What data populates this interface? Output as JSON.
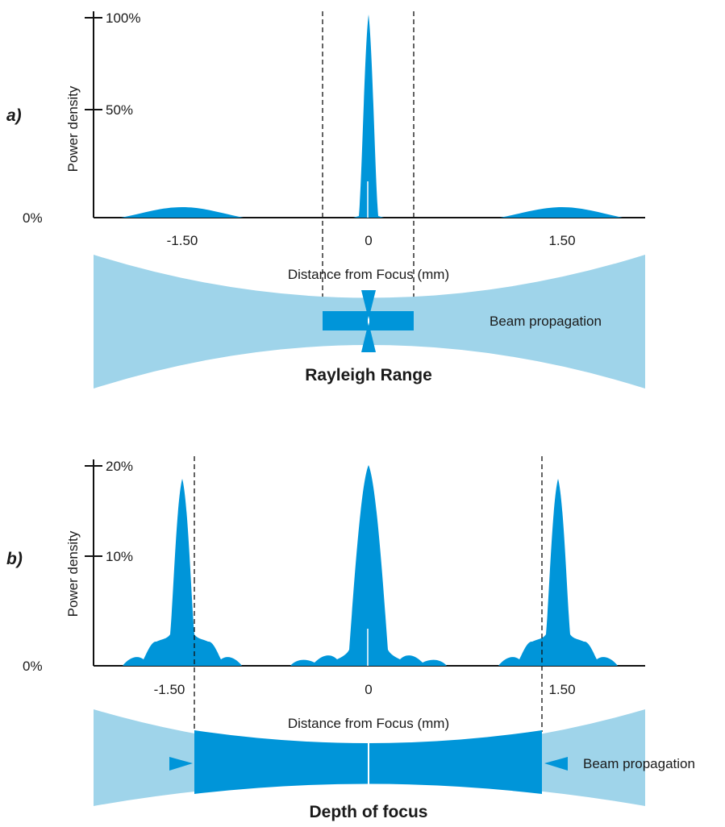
{
  "colors": {
    "accent": "#0095d9",
    "light": "#9fd4ea",
    "axis": "#111111"
  },
  "panel_a": {
    "label": "a)",
    "ylabel": "Power density",
    "yticks": [
      "0%",
      "50%",
      "100%"
    ],
    "xticks": [
      "-1.50",
      "0",
      "1.50"
    ],
    "xlabel": "Distance from Focus (mm)",
    "caption": "Rayleigh Range",
    "beam_label": "Beam propagation"
  },
  "panel_b": {
    "label": "b)",
    "ylabel": "Power density",
    "yticks": [
      "0%",
      "10%",
      "20%"
    ],
    "xticks": [
      "-1.50",
      "0",
      "1.50"
    ],
    "xlabel": "Distance from Focus (mm)",
    "caption": "Depth of focus",
    "beam_label": "Beam propagation"
  }
}
